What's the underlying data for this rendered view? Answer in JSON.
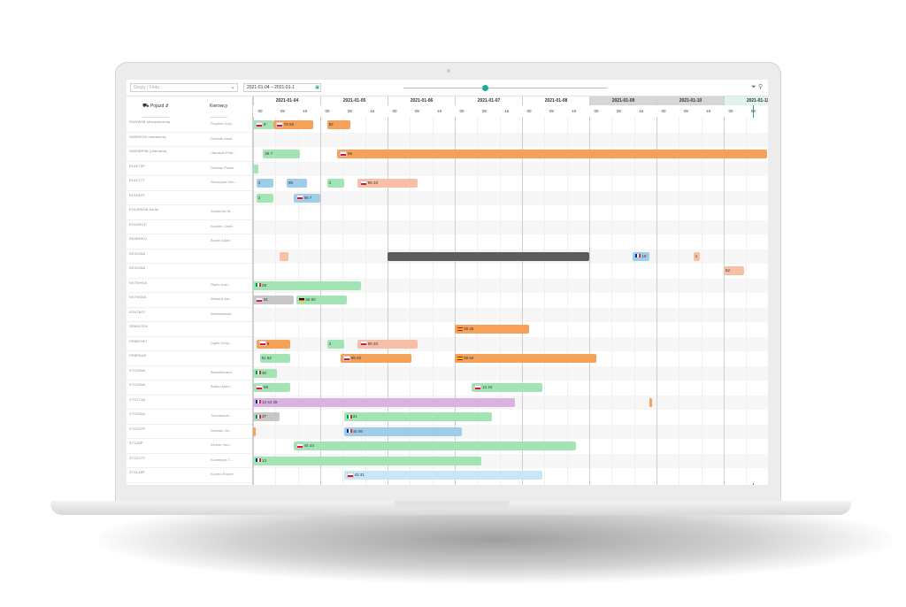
{
  "toolbar": {
    "group_select": "Grupy / Flota",
    "date_range": "2021-01-04 – 2021-01-1",
    "icons": [
      "chevron-down-icon",
      "calendar-icon",
      "filter-icon",
      "search-icon"
    ]
  },
  "columns": {
    "vehicle": "Pojazd",
    "driver": "Kierowcy"
  },
  "days": [
    {
      "label": "2021-01-04",
      "style": "white"
    },
    {
      "label": "2021-01-05",
      "style": "white"
    },
    {
      "label": "2021-01-06",
      "style": "white"
    },
    {
      "label": "2021-01-07",
      "style": "white"
    },
    {
      "label": "2021-01-08",
      "style": "white"
    },
    {
      "label": "2021-01-09",
      "style": "gray"
    },
    {
      "label": "2021-01-10",
      "style": "gray"
    },
    {
      "label": "2021-01-11",
      "style": "teal"
    }
  ],
  "hours": [
    "00",
    "08",
    "16"
  ],
  "colors": {
    "green": "#a3e4b5",
    "orange": "#f5a15a",
    "salmon": "#f7c0a6",
    "blue": "#9fcde8",
    "lightblue": "#c8e6f5",
    "purple": "#d9b3df",
    "gray": "#c7c7c7",
    "dark": "#5c5c5c",
    "accent": "#1aa89a"
  },
  "rows": [
    {
      "vehicle": "DW4W28 ubezpieczony",
      "driver": "Przybek Krzy...",
      "bars": [
        {
          "s": 0,
          "w": 0.3,
          "c": "green",
          "t": "8",
          "f": "pl"
        },
        {
          "s": 0.3,
          "w": 0.6,
          "c": "orange",
          "t": "78 59",
          "f": "pl"
        },
        {
          "s": 1.1,
          "w": 0.35,
          "c": "orange",
          "t": "92"
        }
      ]
    },
    {
      "vehicle": "DW8VK09 dostawczy",
      "driver": "Dzimiak Anna",
      "bars": []
    },
    {
      "vehicle": "DWKWP98 (chłodnia)",
      "driver": "Harnacki Piotr...",
      "bars": [
        {
          "s": 0.15,
          "w": 0.55,
          "c": "green",
          "t": "26 7"
        },
        {
          "s": 1.25,
          "w": 6.4,
          "c": "orange",
          "t": "65",
          "f": "pl"
        }
      ]
    },
    {
      "vehicle": "EL5079P",
      "driver": "Dzimiak Pawel",
      "bars": [
        {
          "s": 0,
          "w": 0.08,
          "c": "green",
          "t": ""
        }
      ]
    },
    {
      "vehicle": "EL5177T",
      "driver": "Skoczylas Hen...",
      "bars": [
        {
          "s": 0.05,
          "w": 0.25,
          "c": "blue",
          "t": "2"
        },
        {
          "s": 0.5,
          "w": 0.3,
          "c": "blue",
          "t": "95"
        },
        {
          "s": 1.1,
          "w": 0.25,
          "c": "green",
          "t": "2"
        },
        {
          "s": 1.55,
          "w": 0.9,
          "c": "salmon",
          "t": "95     33",
          "f": "pl"
        }
      ]
    },
    {
      "vehicle": "EL5189T",
      "driver": "",
      "bars": [
        {
          "s": 0.05,
          "w": 0.25,
          "c": "green",
          "t": "2"
        },
        {
          "s": 0.6,
          "w": 0.4,
          "c": "blue",
          "t": "95 7",
          "f": "pl"
        }
      ]
    },
    {
      "vehicle": "EGU5WG8 kurier",
      "driver": "Szadurski W...",
      "bars": []
    },
    {
      "vehicle": "EGU5K1P",
      "driver": "Krawiec Jarek",
      "bars": []
    },
    {
      "vehicle": "SK2BHKU",
      "driver": "Bosek Adam",
      "bars": []
    },
    {
      "vehicle": "SK1026A",
      "driver": "",
      "bars": [
        {
          "s": 0.4,
          "w": 0.12,
          "c": "salmon",
          "t": ""
        },
        {
          "s": 2,
          "w": 3,
          "c": "dark",
          "t": ""
        },
        {
          "s": 5.65,
          "w": 0.25,
          "c": "blue",
          "t": "19",
          "f": "fr"
        },
        {
          "s": 6.55,
          "w": 0.1,
          "c": "salmon",
          "t": "1"
        }
      ]
    },
    {
      "vehicle": "SK1026A",
      "driver": "",
      "bars": [
        {
          "s": 7,
          "w": 0.3,
          "c": "salmon",
          "t": "62"
        }
      ]
    },
    {
      "vehicle": "SK7NHEA",
      "driver": "Piwko Kazi...",
      "bars": [
        {
          "s": 0,
          "w": 1.6,
          "c": "green",
          "t": "29",
          "f": "it"
        }
      ]
    },
    {
      "vehicle": "SK7NS5A",
      "driver": "Wabara Jan...",
      "bars": [
        {
          "s": 0,
          "w": 0.6,
          "c": "gray",
          "t": "51",
          "f": "pl"
        },
        {
          "s": 0.65,
          "w": 0.75,
          "c": "green",
          "t": "55   90",
          "f": "de"
        }
      ]
    },
    {
      "vehicle": "SO4760T",
      "driver": "Waniszewski...",
      "bars": []
    },
    {
      "vehicle": "SR8912FA",
      "driver": "",
      "bars": [
        {
          "s": 3,
          "w": 1.1,
          "c": "orange",
          "t": "39     36",
          "f": "es"
        }
      ]
    },
    {
      "vehicle": "SR8879KT",
      "driver": "Dąbik Krzys...",
      "bars": [
        {
          "s": 0.05,
          "w": 0.5,
          "c": "orange",
          "t": "9",
          "f": "pl"
        },
        {
          "s": 1.1,
          "w": 0.25,
          "c": "green",
          "t": "3"
        },
        {
          "s": 1.55,
          "w": 0.9,
          "c": "salmon",
          "t": "95     33",
          "f": "pl"
        }
      ]
    },
    {
      "vehicle": "SR8PAA9",
      "driver": "",
      "bars": [
        {
          "s": 0.1,
          "w": 0.45,
          "c": "green",
          "t": "91 92"
        },
        {
          "s": 1.3,
          "w": 1.05,
          "c": "orange",
          "t": "98     33",
          "f": "pl"
        },
        {
          "s": 3,
          "w": 2.1,
          "c": "orange",
          "t": "39                60",
          "f": "es"
        }
      ]
    },
    {
      "vehicle": "ST0159A",
      "driver": "Banaśkiewicz...",
      "bars": [
        {
          "s": 0,
          "w": 0.35,
          "c": "green",
          "t": "30",
          "f": "it"
        }
      ]
    },
    {
      "vehicle": "ST0159A",
      "driver": "Bratko Mare...",
      "bars": [
        {
          "s": 0,
          "w": 0.55,
          "c": "green",
          "t": "58",
          "f": "pl"
        },
        {
          "s": 3.25,
          "w": 1.05,
          "c": "green",
          "t": "13          44",
          "f": "pl"
        }
      ]
    },
    {
      "vehicle": "ST0174A",
      "driver": "",
      "bars": [
        {
          "s": 0,
          "w": 3.9,
          "c": "purple",
          "t": "13              44         28",
          "f": "fr"
        },
        {
          "s": 5.9,
          "w": 0.04,
          "c": "orange",
          "t": ""
        }
      ]
    },
    {
      "vehicle": "ST0195A",
      "driver": "Teresiewski...",
      "bars": [
        {
          "s": 0,
          "w": 0.4,
          "c": "gray",
          "t": "37",
          "f": "it"
        },
        {
          "s": 1.35,
          "w": 2.2,
          "c": "green",
          "t": "31",
          "f": "it"
        }
      ]
    },
    {
      "vehicle": "ST0197P",
      "driver": "Dziekan Jer...",
      "bars": [
        {
          "s": 0,
          "w": 0.04,
          "c": "orange",
          "t": ""
        },
        {
          "s": 1.35,
          "w": 1.75,
          "c": "blue",
          "t": "46              06",
          "f": "fr"
        }
      ]
    },
    {
      "vehicle": "ST128P",
      "driver": "Kleiner Hen...",
      "bars": [
        {
          "s": 0.6,
          "w": 4.2,
          "c": "green",
          "t": "44                      44",
          "f": "pl"
        }
      ]
    },
    {
      "vehicle": "ST1227P",
      "driver": "Kowalczyk T...",
      "bars": [
        {
          "s": 0,
          "w": 3.4,
          "c": "green",
          "t": "13",
          "f": "fr"
        }
      ]
    },
    {
      "vehicle": "ST1128P",
      "driver": "Kozera Robert",
      "bars": [
        {
          "s": 1.35,
          "w": 2.95,
          "c": "lightblue",
          "t": "43                  31",
          "f": "pl"
        }
      ]
    }
  ]
}
